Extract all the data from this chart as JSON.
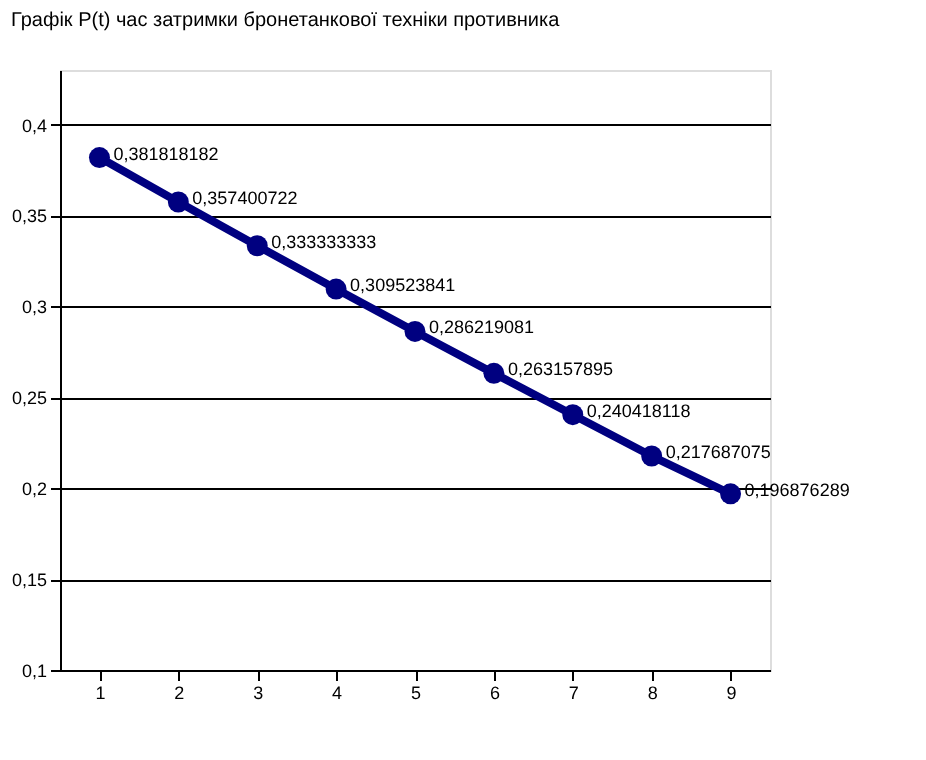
{
  "chart_data": {
    "type": "line",
    "title": "Графік P(t) час затримки бронетанкової техніки противника",
    "categories": [
      "1",
      "2",
      "3",
      "4",
      "5",
      "6",
      "7",
      "8",
      "9"
    ],
    "series": [
      {
        "color": "#000080",
        "values": [
          0.381818182,
          0.357400722,
          0.333333333,
          0.309523841,
          0.286219081,
          0.263157895,
          0.240418118,
          0.217687075,
          0.196876289
        ],
        "value_labels": [
          "0,381818182",
          "0,357400722",
          "0,333333333",
          "0,309523841",
          "0,286219081",
          "0,263157895",
          "0,240418118",
          "0,217687075",
          "0,196876289"
        ]
      }
    ],
    "ylim": [
      0.1,
      0.43
    ],
    "yticks": [
      {
        "value": 0.1,
        "label": "0,1"
      },
      {
        "value": 0.15,
        "label": "0,15"
      },
      {
        "value": 0.2,
        "label": "0,2"
      },
      {
        "value": 0.25,
        "label": "0,25"
      },
      {
        "value": 0.3,
        "label": "0,3"
      },
      {
        "value": 0.35,
        "label": "0,35"
      },
      {
        "value": 0.4,
        "label": "0,4"
      }
    ],
    "grid": "y",
    "marker": "circle",
    "line_style": "solid"
  }
}
